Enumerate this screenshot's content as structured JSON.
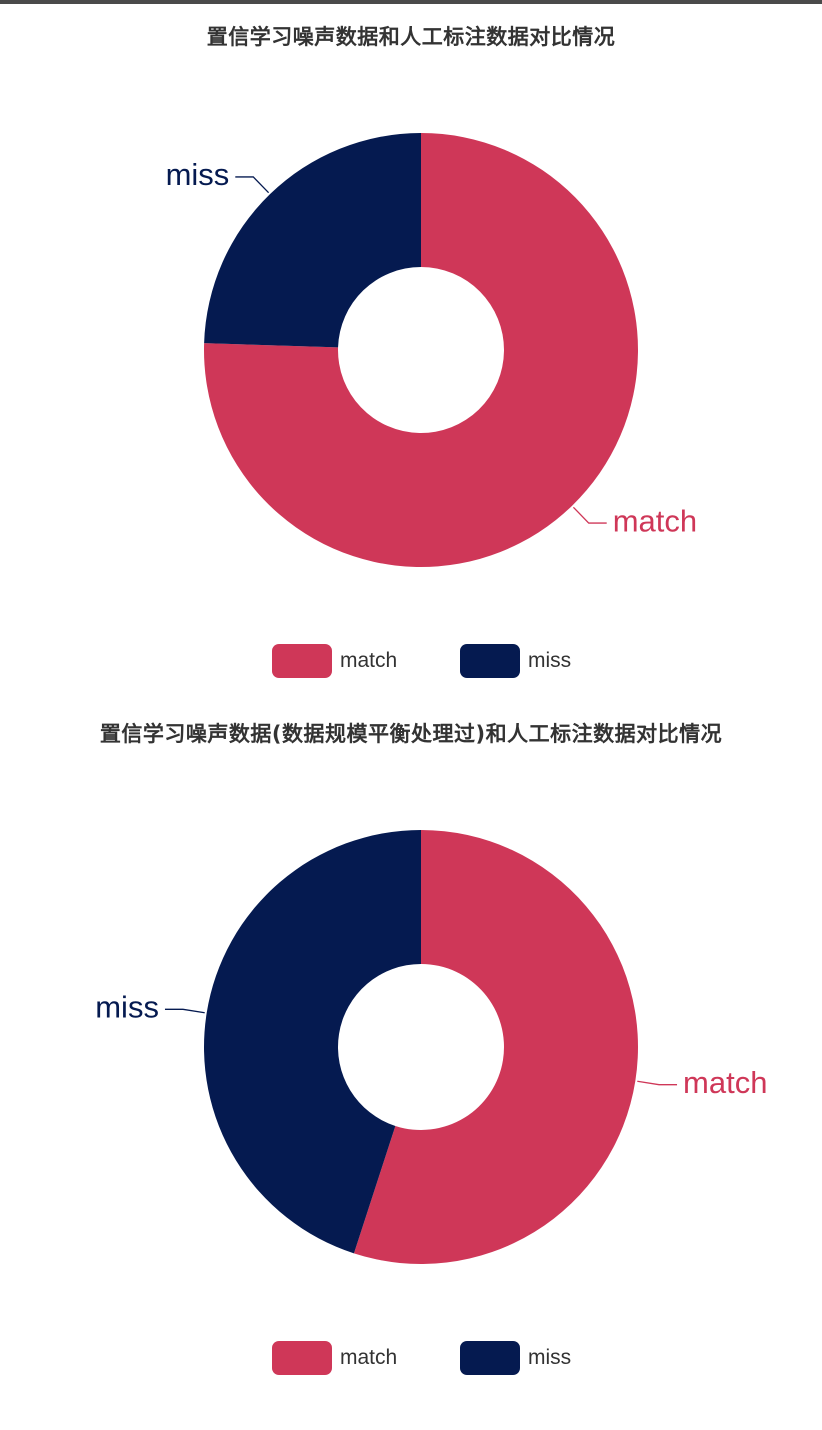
{
  "colors": {
    "match": "#cf3758",
    "miss": "#051a50",
    "title": "#333333",
    "legend_text": "#333333"
  },
  "charts": [
    {
      "title": "置信学习噪声数据和人工标注数据对比情况",
      "legend": [
        "match",
        "miss"
      ]
    },
    {
      "title": "置信学习噪声数据(数据规模平衡处理过)和人工标注数据对比情况",
      "legend": [
        "match",
        "miss"
      ]
    }
  ],
  "chart_data": [
    {
      "type": "pie",
      "donut": true,
      "title": "置信学习噪声数据和人工标注数据对比情况",
      "categories": [
        "match",
        "miss"
      ],
      "values": [
        75.5,
        24.5
      ],
      "legend_position": "bottom-center"
    },
    {
      "type": "pie",
      "donut": true,
      "title": "置信学习噪声数据(数据规模平衡处理过)和人工标注数据对比情况",
      "categories": [
        "match",
        "miss"
      ],
      "values": [
        55,
        45
      ],
      "legend_position": "bottom-center"
    }
  ]
}
